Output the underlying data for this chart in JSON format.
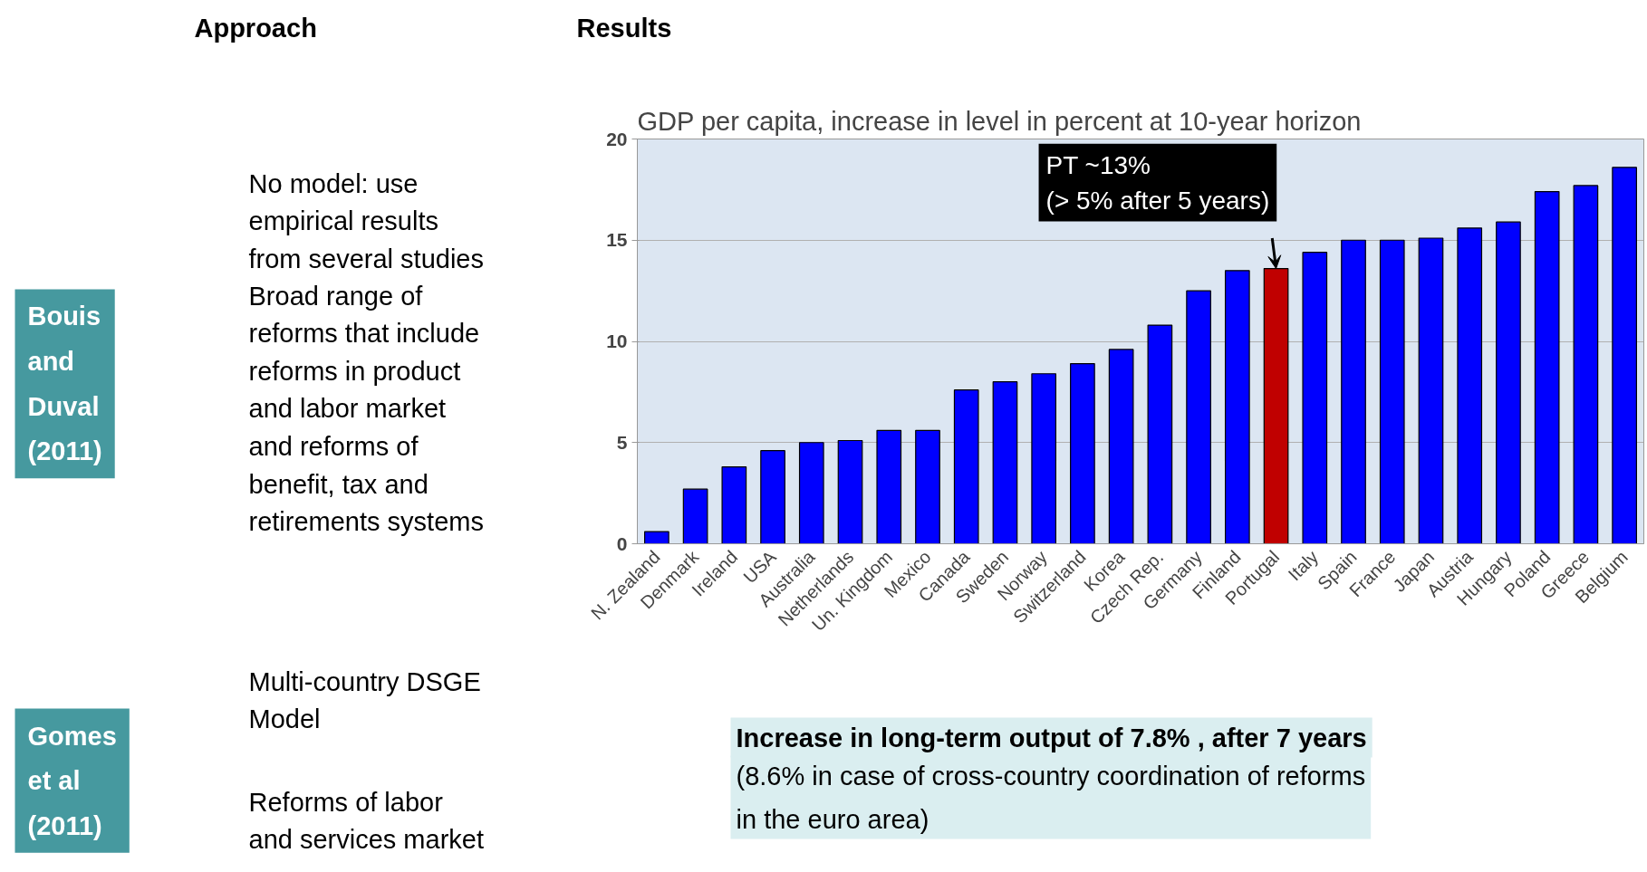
{
  "chart_data": {
    "type": "bar",
    "title": "GDP per capita, increase in level in percent at 10-year horizon",
    "categories": [
      "N. Zealand",
      "Denmark",
      "Ireland",
      "USA",
      "Australia",
      "Netherlands",
      "Un. Kingdom",
      "Mexico",
      "Canada",
      "Sweden",
      "Norway",
      "Switzerland",
      "Korea",
      "Czech Rep.",
      "Germany",
      "Finland",
      "Portugal",
      "Italy",
      "Spain",
      "France",
      "Japan",
      "Austria",
      "Hungary",
      "Poland",
      "Greece",
      "Belgium"
    ],
    "values": [
      0.6,
      2.7,
      3.8,
      4.6,
      5.0,
      5.1,
      5.6,
      5.6,
      7.6,
      8.0,
      8.4,
      8.9,
      9.6,
      10.8,
      12.5,
      13.5,
      13.6,
      14.4,
      15.0,
      15.0,
      15.1,
      15.6,
      15.9,
      17.4,
      17.7,
      18.6
    ],
    "colors": [
      "#0000ff",
      "#0000ff",
      "#0000ff",
      "#0000ff",
      "#0000ff",
      "#0000ff",
      "#0000ff",
      "#0000ff",
      "#0000ff",
      "#0000ff",
      "#0000ff",
      "#0000ff",
      "#0000ff",
      "#0000ff",
      "#0000ff",
      "#0000ff",
      "#c00000",
      "#0000ff",
      "#0000ff",
      "#0000ff",
      "#0000ff",
      "#0000ff",
      "#0000ff",
      "#0000ff",
      "#0000ff",
      "#0000ff"
    ],
    "ylim": [
      0,
      20
    ],
    "yticks": [
      0,
      5,
      10,
      15,
      20
    ],
    "grid": "y",
    "annotations": [
      "Approach",
      "Results",
      "Bouis\nand\nDuval\n(2011)",
      "No model: use\nempirical results\nfrom several studies",
      "Broad range of\nreforms that include\nreforms in product\nand labor market\nand reforms of\nbenefit, tax and\nretirements systems",
      "Gomes\net al\n(2011)",
      "Multi-country DSGE\nModel",
      "Reforms of labor\nand services market",
      {
        "text": "PT ~13%\n(> 5% after 5 years)",
        "x": "Portugal",
        "y": 13.6
      },
      "Increase in long-term output of 7.8% , after 7 years",
      "(8.6% in case of cross-country coordination of reforms\nin the euro area)"
    ]
  }
}
